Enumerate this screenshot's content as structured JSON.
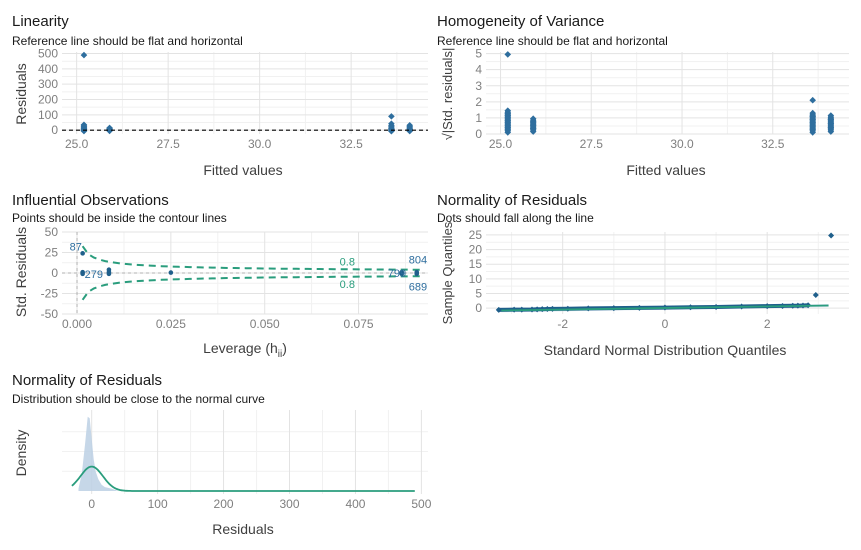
{
  "colors": {
    "point": "#2e6e9e",
    "point_dark": "#1f5f8b",
    "teal": "#2a9d7d",
    "label_blue": "#2e6e9e",
    "grid_major": "#e3e3e3",
    "grid_minor": "#f1f1f1",
    "density_fill": "#bcd0e4"
  },
  "chart_data": [
    {
      "type": "scatter",
      "title": "Linearity",
      "subtitle": "Reference line should be flat and horizontal",
      "xlabel": "Fitted values",
      "ylabel": "Residuals",
      "xlim": [
        24.6,
        34.6
      ],
      "ylim": [
        -25,
        510
      ],
      "xticks": [
        "25.0",
        "27.5",
        "30.0",
        "32.5"
      ],
      "yticks": [
        "0",
        "100",
        "200",
        "300",
        "400",
        "500"
      ],
      "grid": true,
      "reference_line": 0,
      "groups": [
        {
          "x": 25.2,
          "values": [
            -6,
            -3,
            -1,
            2,
            4,
            8,
            12,
            18,
            22,
            28,
            35,
            490
          ]
        },
        {
          "x": 25.9,
          "values": [
            -5,
            -2,
            1,
            4,
            7,
            11,
            15
          ]
        },
        {
          "x": 33.6,
          "values": [
            -7,
            -3,
            1,
            5,
            9,
            14,
            22,
            30,
            42,
            90
          ]
        },
        {
          "x": 34.1,
          "values": [
            -6,
            -2,
            2,
            6,
            10,
            16,
            24,
            32
          ]
        }
      ]
    },
    {
      "type": "scatter",
      "title": "Homogeneity of Variance",
      "subtitle": "Reference line should be flat and horizontal",
      "xlabel": "Fitted values",
      "ylabel": "√|Std. residuals|",
      "xlim": [
        24.6,
        34.6
      ],
      "ylim": [
        0,
        5.1
      ],
      "xticks": [
        "25.0",
        "27.5",
        "30.0",
        "32.5"
      ],
      "yticks": [
        "0",
        "1",
        "2",
        "3",
        "4",
        "5"
      ],
      "grid": true,
      "groups": [
        {
          "x": 25.2,
          "values": [
            0.1,
            0.25,
            0.4,
            0.55,
            0.7,
            0.85,
            1.0,
            1.15,
            1.3,
            1.45,
            4.95
          ]
        },
        {
          "x": 25.9,
          "values": [
            0.15,
            0.35,
            0.55,
            0.75,
            0.95
          ]
        },
        {
          "x": 33.6,
          "values": [
            0.1,
            0.3,
            0.5,
            0.7,
            0.9,
            1.1,
            1.3,
            2.1
          ]
        },
        {
          "x": 34.1,
          "values": [
            0.15,
            0.4,
            0.65,
            0.9,
            1.15
          ]
        }
      ]
    },
    {
      "type": "scatter",
      "title": "Influential Observations",
      "subtitle": "Points should be inside the contour lines",
      "xlabel": "Leverage (hii)",
      "xlabel_main": "Leverage (h",
      "xlabel_sub": "ii",
      "xlabel_close": ")",
      "ylabel": "Std. Residuals",
      "xlim": [
        -0.004,
        0.0935
      ],
      "ylim": [
        -50,
        50
      ],
      "xticks": [
        "0.000",
        "0.025",
        "0.050",
        "0.075"
      ],
      "yticks": [
        "-50",
        "-25",
        "0",
        "25",
        "50"
      ],
      "grid": true,
      "points": [
        {
          "x": 0.0015,
          "y": 24
        },
        {
          "x": 0.0015,
          "y": 1
        },
        {
          "x": 0.0015,
          "y": -1
        },
        {
          "x": 0.0085,
          "y": 4
        },
        {
          "x": 0.0085,
          "y": 1
        },
        {
          "x": 0.0085,
          "y": -1
        },
        {
          "x": 0.025,
          "y": 0.5
        },
        {
          "x": 0.0865,
          "y": 1
        },
        {
          "x": 0.0865,
          "y": -1
        },
        {
          "x": 0.0905,
          "y": 1
        },
        {
          "x": 0.0905,
          "y": -1
        }
      ],
      "point_labels": [
        {
          "text": "87",
          "x": 0.0015,
          "y": 24
        },
        {
          "text": "279",
          "x": 0.0015,
          "y": 0
        },
        {
          "text": "799",
          "x": 0.0865,
          "y": 0
        },
        {
          "text": "804",
          "x": 0.0905,
          "y": 4
        },
        {
          "text": "689",
          "x": 0.0905,
          "y": -4
        }
      ],
      "contour_label": "0.8",
      "contour_level": 0.8
    },
    {
      "type": "scatter",
      "title": "Normality of Residuals",
      "subtitle": "Dots should fall along the line",
      "xlabel": "Standard Normal Distribution Quantiles",
      "ylabel": "Sample Quantiles",
      "xlim": [
        -3.5,
        3.6
      ],
      "ylim": [
        -2,
        26
      ],
      "xticks": [
        "-2",
        "0",
        "2"
      ],
      "yticks": [
        "0",
        "5",
        "10",
        "15",
        "20",
        "25"
      ],
      "grid": true,
      "reference_line": {
        "x": [
          -3.2,
          3.2
        ],
        "y": [
          -0.8,
          0.9
        ]
      },
      "band": {
        "x": [
          -3.2,
          3.2
        ],
        "lower": [
          -1.4,
          0.4
        ],
        "upper": [
          -0.6,
          1.4
        ]
      },
      "points": [
        {
          "x": -3.25,
          "y": -0.6
        },
        {
          "x": -2.95,
          "y": -0.5
        },
        {
          "x": -2.8,
          "y": -0.5
        },
        {
          "x": -2.6,
          "y": -0.45
        },
        {
          "x": -2.5,
          "y": -0.4
        },
        {
          "x": -2.4,
          "y": -0.35
        },
        {
          "x": -2.3,
          "y": -0.3
        },
        {
          "x": -2.2,
          "y": -0.25
        },
        {
          "x": -1.9,
          "y": -0.2
        },
        {
          "x": -1.5,
          "y": -0.1
        },
        {
          "x": -1.0,
          "y": 0.0
        },
        {
          "x": -0.5,
          "y": 0.1
        },
        {
          "x": 0.0,
          "y": 0.2
        },
        {
          "x": 0.5,
          "y": 0.3
        },
        {
          "x": 1.0,
          "y": 0.4
        },
        {
          "x": 1.5,
          "y": 0.55
        },
        {
          "x": 2.0,
          "y": 0.7
        },
        {
          "x": 2.3,
          "y": 0.75
        },
        {
          "x": 2.5,
          "y": 0.8
        },
        {
          "x": 2.6,
          "y": 0.85
        },
        {
          "x": 2.7,
          "y": 0.9
        },
        {
          "x": 2.8,
          "y": 1.0
        },
        {
          "x": 2.95,
          "y": 4.5
        },
        {
          "x": 3.25,
          "y": 24.8
        }
      ]
    },
    {
      "type": "area",
      "title": "Normality of Residuals",
      "subtitle": "Distribution should be close to the normal curve",
      "xlabel": "Residuals",
      "ylabel": "Density",
      "xlim": [
        -45,
        510
      ],
      "ylim": [
        0,
        1
      ],
      "xticks": [
        "0",
        "100",
        "200",
        "300",
        "400",
        "500"
      ],
      "grid": true,
      "density_x": [
        -20,
        -15,
        -10,
        -6,
        -3,
        0,
        3,
        6,
        10,
        15,
        20,
        30,
        40
      ],
      "density_y": [
        0.03,
        0.22,
        0.6,
        0.94,
        0.92,
        0.66,
        0.4,
        0.25,
        0.15,
        0.08,
        0.05,
        0.03,
        0.0
      ],
      "normal_mean": 0,
      "normal_sd": 17,
      "normal_peak": 0.31,
      "normal_x_end": 490
    }
  ]
}
